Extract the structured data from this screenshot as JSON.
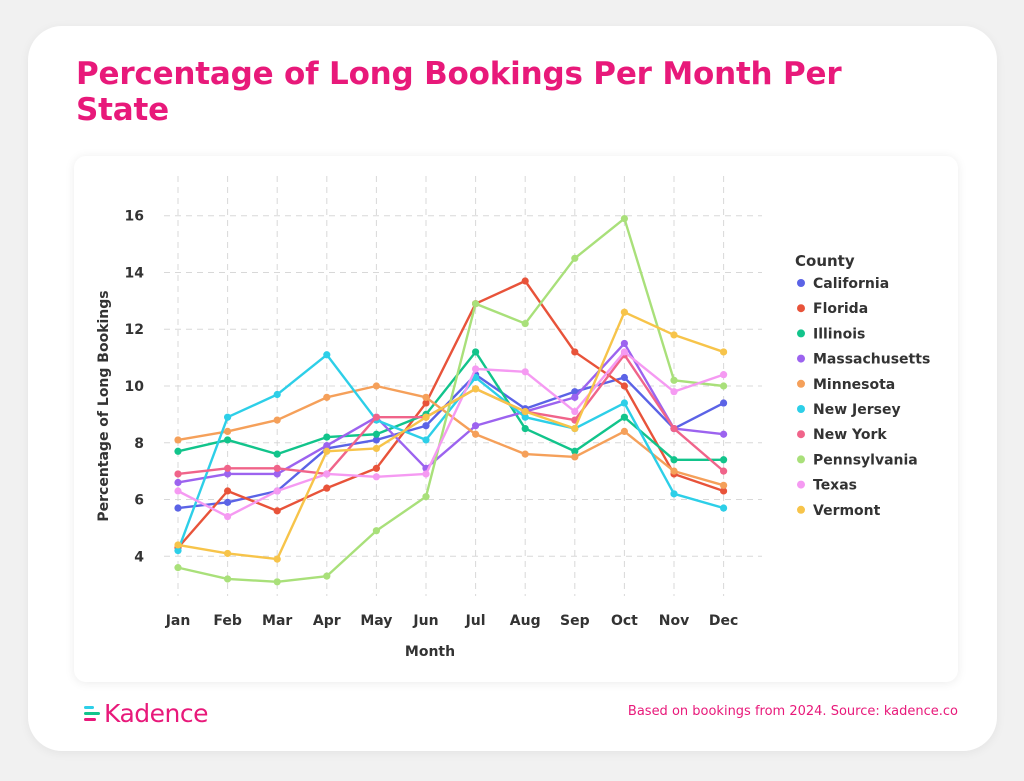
{
  "title": "Percentage of Long Bookings Per Month Per State",
  "footer": {
    "logo_text": "Kadence",
    "source": "Based on bookings from 2024. Source: kadence.co"
  },
  "colors": {
    "brand": "#e8197a",
    "grid": "#d8d8d8"
  },
  "chart_data": {
    "type": "line",
    "xlabel": "Month",
    "ylabel": "Percentage of Long Bookings",
    "categories": [
      "Jan",
      "Feb",
      "Mar",
      "Apr",
      "May",
      "Jun",
      "Jul",
      "Aug",
      "Sep",
      "Oct",
      "Nov",
      "Dec"
    ],
    "yticks": [
      4,
      6,
      8,
      10,
      12,
      14,
      16
    ],
    "ylim": [
      2.6,
      17.4
    ],
    "grid": true,
    "legend": {
      "title": "County",
      "placement": "right"
    },
    "series": [
      {
        "name": "California",
        "color": "#5b63e6",
        "values": [
          5.7,
          5.9,
          6.3,
          7.8,
          8.1,
          8.6,
          10.4,
          9.2,
          9.8,
          10.3,
          8.5,
          9.4
        ]
      },
      {
        "name": "Florida",
        "color": "#e8533a",
        "values": [
          4.3,
          6.3,
          5.6,
          6.4,
          7.1,
          9.4,
          12.9,
          13.7,
          11.2,
          10.0,
          6.9,
          6.3
        ]
      },
      {
        "name": "Illinois",
        "color": "#12c48b",
        "values": [
          7.7,
          8.1,
          7.6,
          8.2,
          8.3,
          9.0,
          11.2,
          8.5,
          7.7,
          8.9,
          7.4,
          7.4
        ]
      },
      {
        "name": "Massachusetts",
        "color": "#9c63ef",
        "values": [
          6.6,
          6.9,
          6.9,
          7.9,
          8.9,
          7.1,
          8.6,
          9.1,
          9.6,
          11.5,
          8.5,
          8.3
        ]
      },
      {
        "name": "Minnesota",
        "color": "#f5a05a",
        "values": [
          8.1,
          8.4,
          8.8,
          9.6,
          10.0,
          9.6,
          8.3,
          7.6,
          7.5,
          8.4,
          7.0,
          6.5
        ]
      },
      {
        "name": "New Jersey",
        "color": "#2dcfe8",
        "values": [
          4.2,
          8.9,
          9.7,
          11.1,
          8.8,
          8.1,
          10.3,
          8.9,
          8.5,
          9.4,
          6.2,
          5.7
        ]
      },
      {
        "name": "New York",
        "color": "#f0648a",
        "values": [
          6.9,
          7.1,
          7.1,
          6.9,
          8.9,
          8.9,
          9.9,
          9.1,
          8.8,
          11.1,
          8.5,
          7.0
        ]
      },
      {
        "name": "Pennsylvania",
        "color": "#a9e07a",
        "values": [
          3.6,
          3.2,
          3.1,
          3.3,
          4.9,
          6.1,
          12.9,
          12.2,
          14.5,
          15.9,
          10.2,
          10.0
        ]
      },
      {
        "name": "Texas",
        "color": "#f59af2",
        "values": [
          6.3,
          5.4,
          6.3,
          6.9,
          6.8,
          6.9,
          10.6,
          10.5,
          9.1,
          11.2,
          9.8,
          10.4
        ]
      },
      {
        "name": "Vermont",
        "color": "#f7c44a",
        "values": [
          4.4,
          4.1,
          3.9,
          7.7,
          7.8,
          8.9,
          9.9,
          9.1,
          8.5,
          12.6,
          11.8,
          11.2
        ]
      }
    ]
  }
}
